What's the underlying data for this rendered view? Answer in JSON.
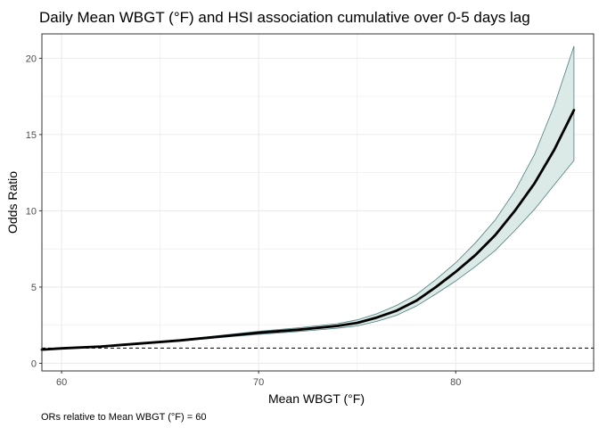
{
  "chart_data": {
    "type": "line",
    "title": "Daily Mean WBGT (°F) and HSI association cumulative over 0-5 days lag",
    "xlabel": "Mean WBGT (°F)",
    "ylabel": "Odds Ratio",
    "caption": "ORs relative to Mean WBGT (°F) = 60",
    "xlim": [
      59,
      87
    ],
    "ylim": [
      -0.5,
      21.6
    ],
    "x_ticks": [
      60,
      70,
      80
    ],
    "y_ticks": [
      0,
      5,
      10,
      15,
      20
    ],
    "grid": true,
    "legend": "none",
    "reference_line": {
      "y": 1,
      "style": "dashed"
    },
    "series": [
      {
        "x": [
          59,
          60,
          62,
          64,
          66,
          68,
          70,
          72,
          74,
          75,
          76,
          77,
          78,
          79,
          80,
          81,
          82,
          83,
          84,
          85,
          86
        ],
        "y": [
          0.9,
          0.98,
          1.1,
          1.3,
          1.5,
          1.75,
          2.0,
          2.2,
          2.45,
          2.65,
          3.0,
          3.45,
          4.1,
          5.0,
          6.0,
          7.1,
          8.4,
          10.0,
          11.8,
          14.0,
          16.6
        ],
        "lower": [
          0.9,
          0.97,
          1.08,
          1.27,
          1.45,
          1.68,
          1.9,
          2.08,
          2.3,
          2.45,
          2.75,
          3.15,
          3.75,
          4.55,
          5.4,
          6.35,
          7.4,
          8.7,
          10.1,
          11.7,
          13.3
        ],
        "upper": [
          0.9,
          0.99,
          1.12,
          1.33,
          1.55,
          1.82,
          2.1,
          2.33,
          2.6,
          2.85,
          3.25,
          3.8,
          4.5,
          5.5,
          6.6,
          7.9,
          9.4,
          11.3,
          13.7,
          16.9,
          20.8
        ]
      }
    ]
  },
  "colors": {
    "line": "#000000",
    "ribbon_fill": "#dbe9e7",
    "ribbon_edge": "#4f7f80",
    "grid": "#ebebeb",
    "panel_border": "#333333",
    "reference_line": "#000000"
  }
}
